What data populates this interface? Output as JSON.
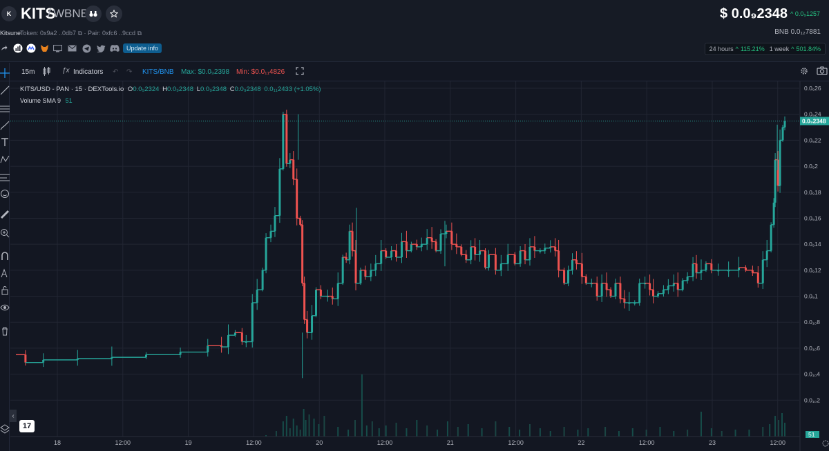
{
  "header": {
    "logo_letter": "K",
    "symbol": "KITS",
    "pair_sep": "/",
    "pair_quote": "WBNB",
    "token_name": "Kitsune",
    "token_label": "Token: 0x9a2 ..0db7",
    "pair_label": "· Pair: 0xfc6 ..9ccd",
    "update_label": "Update info",
    "price": "$ 0.0₉2348",
    "price_change": "0.0₉1257",
    "bnb_price": "BNB  0.0₁₂7881",
    "perf_24h_label": "24 hours",
    "perf_24h_value": "115.21%",
    "perf_week_label": "1 week",
    "perf_week_value": "501.84%",
    "socials": [
      "share-icon",
      "chart-badge-icon",
      "coinmarketcap-icon",
      "metamask-icon",
      "website-icon",
      "email-icon",
      "telegram-icon",
      "twitter-icon",
      "discord-icon"
    ]
  },
  "toolbar": {
    "interval": "15m",
    "indicators": "Indicators",
    "pair_toggle": "KITS/BNB",
    "max_label": "Max: $0.0₉2398",
    "min_label": "Min: $0.0₁₁4826"
  },
  "legend": {
    "title": "KITS/USD - PAN · 15 · DEXTools.io",
    "o_label": "O",
    "o_val": "0.0₉2324",
    "h_label": "H",
    "h_val": "0.0₉2348",
    "l_label": "L",
    "l_val": "0.0₉2348",
    "c_label": "C",
    "c_val": "0.0₉2348",
    "chg_val": "0.0₁₁2433 (+1.05%)",
    "volume_label": "Volume SMA 9",
    "volume_val": "51"
  },
  "colors": {
    "up": "#26a69a",
    "down": "#ef5350",
    "background": "#131722",
    "grid": "#222633",
    "accent": "#1e88c9"
  },
  "chart_data": {
    "type": "candlestick",
    "x_ticks": [
      "18",
      "12:00",
      "19",
      "12:00",
      "20",
      "12:00",
      "21",
      "12:00",
      "22",
      "12:00",
      "23",
      "12:00"
    ],
    "y_ticks": [
      "0.0₉26",
      "0.0₉24",
      "0.0₉22",
      "0.0₉2",
      "0.0₉18",
      "0.0₉16",
      "0.0₉14",
      "0.0₉12",
      "0.0₉1",
      "0.0₁₀8",
      "0.0₁₀6",
      "0.0₁₀4",
      "0.0₁₀2"
    ],
    "y_unit": "×1e-9 USD",
    "ylim": [
      0.0,
      2.6
    ],
    "last_price_tag": "0.0₉2348",
    "last_price": 2.348,
    "volume_tag": "51",
    "series_points": [
      [
        0,
        0.55
      ],
      [
        14,
        0.49
      ],
      [
        40,
        0.51
      ],
      [
        90,
        0.52
      ],
      [
        140,
        0.53
      ],
      [
        190,
        0.55
      ],
      [
        240,
        0.57
      ],
      [
        280,
        0.62
      ],
      [
        300,
        0.61
      ],
      [
        310,
        0.7
      ],
      [
        320,
        0.72
      ],
      [
        330,
        0.65
      ],
      [
        336,
        0.65
      ],
      [
        345,
        0.95
      ],
      [
        352,
        1.05
      ],
      [
        360,
        1.2
      ],
      [
        365,
        1.45
      ],
      [
        372,
        1.5
      ],
      [
        378,
        1.62
      ],
      [
        385,
        1.98
      ],
      [
        390,
        2.4
      ],
      [
        395,
        2.02
      ],
      [
        400,
        2.05
      ],
      [
        405,
        1.9
      ],
      [
        410,
        1.6
      ],
      [
        415,
        1.55
      ],
      [
        418,
        1.1
      ],
      [
        421,
        0.82
      ],
      [
        425,
        0.72
      ],
      [
        432,
        0.85
      ],
      [
        438,
        1.05
      ],
      [
        445,
        1.0
      ],
      [
        455,
        1.0
      ],
      [
        462,
        0.98
      ],
      [
        470,
        1.1
      ],
      [
        477,
        1.3
      ],
      [
        482,
        1.28
      ],
      [
        487,
        1.5
      ],
      [
        491,
        1.35
      ],
      [
        496,
        1.1
      ],
      [
        503,
        1.2
      ],
      [
        510,
        1.15
      ],
      [
        518,
        1.2
      ],
      [
        525,
        1.25
      ],
      [
        533,
        1.35
      ],
      [
        540,
        1.3
      ],
      [
        548,
        1.35
      ],
      [
        555,
        1.3
      ],
      [
        563,
        1.42
      ],
      [
        570,
        1.35
      ],
      [
        577,
        1.4
      ],
      [
        585,
        1.38
      ],
      [
        592,
        1.4
      ],
      [
        600,
        1.45
      ],
      [
        607,
        1.42
      ],
      [
        613,
        1.35
      ],
      [
        620,
        1.48
      ],
      [
        628,
        1.5
      ],
      [
        636,
        1.4
      ],
      [
        643,
        1.38
      ],
      [
        650,
        1.32
      ],
      [
        657,
        1.28
      ],
      [
        664,
        1.38
      ],
      [
        670,
        1.32
      ],
      [
        677,
        1.35
      ],
      [
        685,
        1.22
      ],
      [
        690,
        1.32
      ],
      [
        700,
        1.2
      ],
      [
        708,
        1.25
      ],
      [
        718,
        1.32
      ],
      [
        728,
        1.25
      ],
      [
        736,
        1.35
      ],
      [
        743,
        1.28
      ],
      [
        750,
        1.38
      ],
      [
        757,
        1.35
      ],
      [
        765,
        1.35
      ],
      [
        772,
        1.37
      ],
      [
        780,
        1.38
      ],
      [
        787,
        1.35
      ],
      [
        792,
        1.2
      ],
      [
        800,
        1.1
      ],
      [
        806,
        1.2
      ],
      [
        812,
        1.28
      ],
      [
        818,
        1.25
      ],
      [
        826,
        1.15
      ],
      [
        832,
        1.1
      ],
      [
        840,
        1.1
      ],
      [
        848,
        1.0
      ],
      [
        855,
        1.1
      ],
      [
        862,
        1.05
      ],
      [
        868,
        1.0
      ],
      [
        875,
        1.1
      ],
      [
        882,
        0.98
      ],
      [
        888,
        0.95
      ],
      [
        895,
        0.95
      ],
      [
        903,
        0.95
      ],
      [
        910,
        1.1
      ],
      [
        918,
        1.1
      ],
      [
        925,
        1.05
      ],
      [
        930,
        1.0
      ],
      [
        937,
        1.02
      ],
      [
        945,
        1.05
      ],
      [
        952,
        1.08
      ],
      [
        960,
        1.1
      ],
      [
        966,
        1.05
      ],
      [
        973,
        1.12
      ],
      [
        980,
        1.15
      ],
      [
        988,
        1.25
      ],
      [
        993,
        1.18
      ],
      [
        1000,
        1.2
      ],
      [
        1007,
        1.25
      ],
      [
        1015,
        1.2
      ],
      [
        1025,
        1.2
      ],
      [
        1040,
        1.2
      ],
      [
        1055,
        1.22
      ],
      [
        1065,
        1.2
      ],
      [
        1075,
        1.18
      ],
      [
        1083,
        1.1
      ],
      [
        1090,
        1.28
      ],
      [
        1096,
        1.35
      ],
      [
        1102,
        1.55
      ],
      [
        1106,
        1.72
      ],
      [
        1108,
        2.05
      ],
      [
        1112,
        1.85
      ],
      [
        1115,
        2.2
      ],
      [
        1119,
        2.3
      ],
      [
        1122,
        2.348
      ]
    ],
    "volume_bars": [
      [
        365,
        2
      ],
      [
        380,
        8
      ],
      [
        390,
        22
      ],
      [
        395,
        30
      ],
      [
        400,
        12
      ],
      [
        405,
        26
      ],
      [
        410,
        16
      ],
      [
        415,
        10
      ],
      [
        420,
        40
      ],
      [
        423,
        24
      ],
      [
        428,
        32
      ],
      [
        435,
        26
      ],
      [
        442,
        18
      ],
      [
        450,
        30
      ],
      [
        470,
        14
      ],
      [
        485,
        10
      ],
      [
        495,
        24
      ],
      [
        505,
        90
      ],
      [
        512,
        16
      ],
      [
        520,
        22
      ],
      [
        530,
        12
      ],
      [
        540,
        16
      ],
      [
        555,
        20
      ],
      [
        570,
        12
      ],
      [
        585,
        24
      ],
      [
        600,
        16
      ],
      [
        615,
        10
      ],
      [
        630,
        22
      ],
      [
        645,
        14
      ],
      [
        660,
        18
      ],
      [
        680,
        12
      ],
      [
        700,
        22
      ],
      [
        720,
        14
      ],
      [
        735,
        10
      ],
      [
        750,
        18
      ],
      [
        765,
        12
      ],
      [
        780,
        8
      ],
      [
        800,
        14
      ],
      [
        820,
        10
      ],
      [
        835,
        12
      ],
      [
        860,
        14
      ],
      [
        880,
        8
      ],
      [
        900,
        12
      ],
      [
        920,
        10
      ],
      [
        940,
        14
      ],
      [
        960,
        8
      ],
      [
        980,
        10
      ],
      [
        1000,
        36
      ],
      [
        1015,
        12
      ],
      [
        1030,
        8
      ],
      [
        1050,
        10
      ],
      [
        1070,
        10
      ],
      [
        1090,
        14
      ],
      [
        1100,
        18
      ],
      [
        1108,
        30
      ],
      [
        1113,
        24
      ],
      [
        1118,
        34
      ],
      [
        1122,
        20
      ]
    ]
  }
}
